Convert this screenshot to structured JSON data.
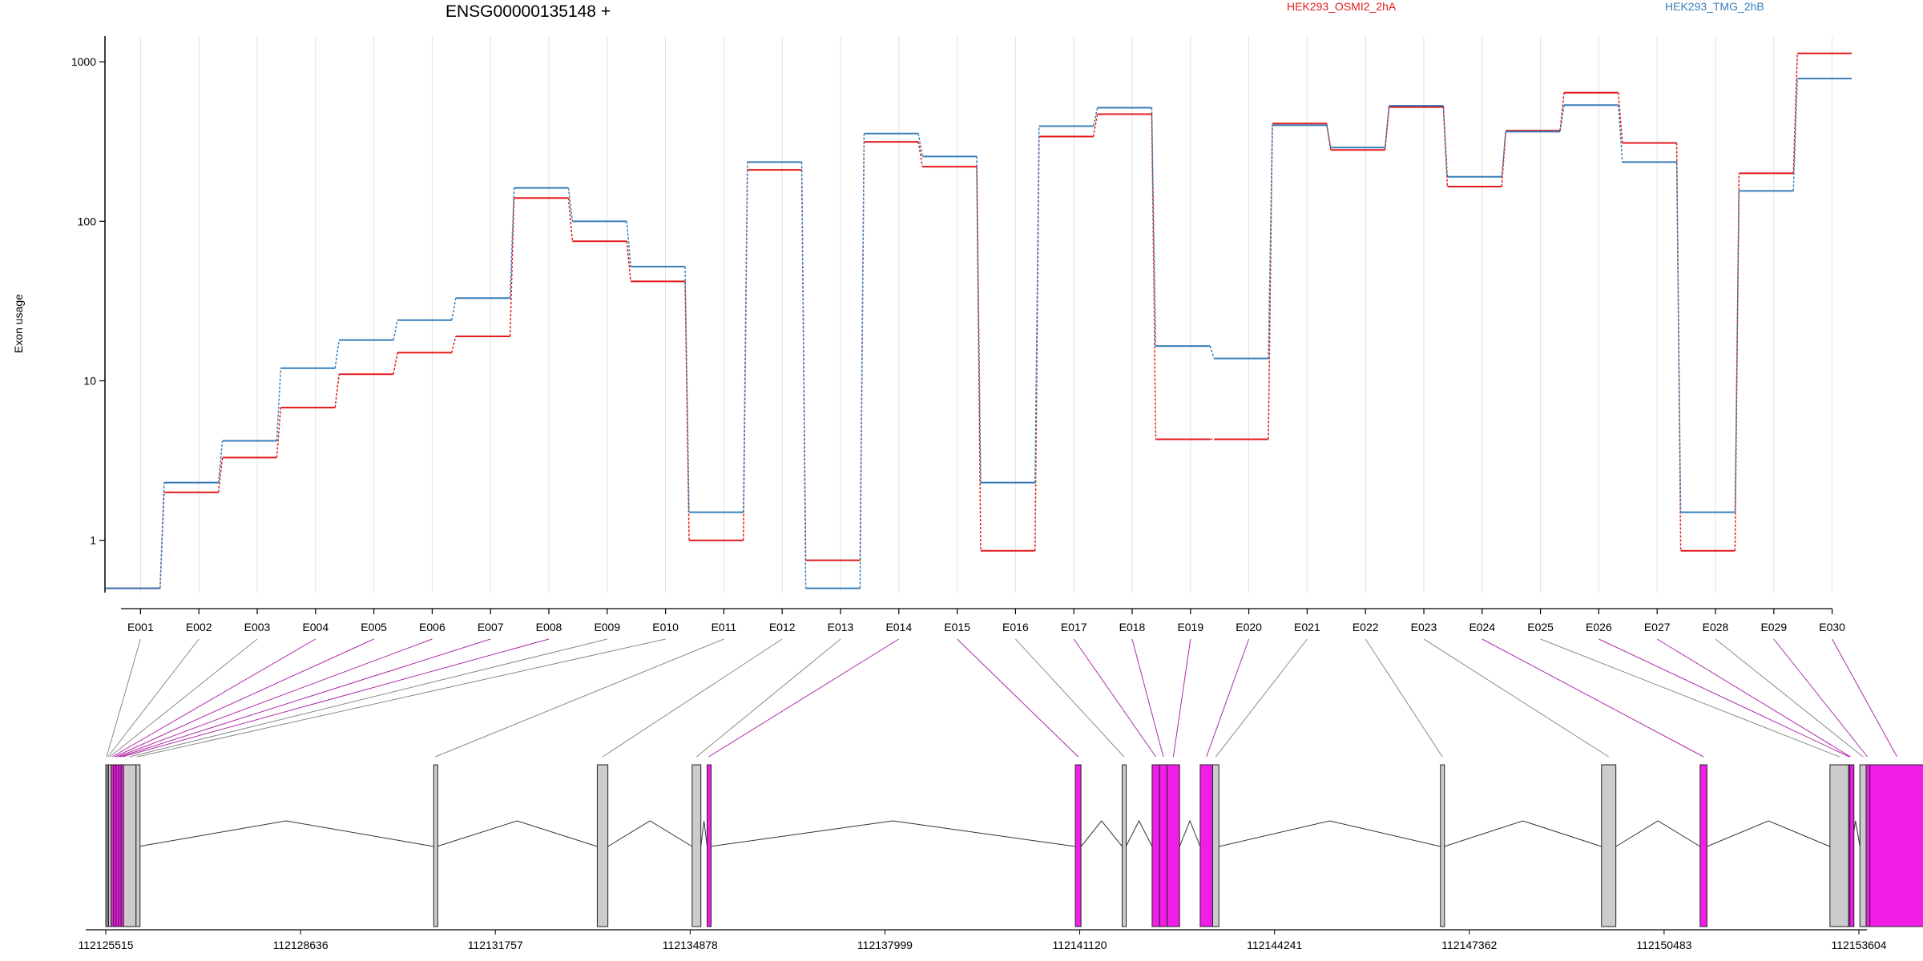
{
  "chart_data": {
    "type": "line",
    "title": "ENSG00000135148 +",
    "ylabel": "Exon usage",
    "yscale": "log",
    "ylim": [
      0.47,
      1450
    ],
    "yticks": [
      "1",
      "10",
      "100",
      "1000"
    ],
    "grid": true,
    "legend_position": "top",
    "categories": [
      "E001",
      "E002",
      "E003",
      "E004",
      "E005",
      "E006",
      "E007",
      "E008",
      "E009",
      "E010",
      "E011",
      "E012",
      "E013",
      "E014",
      "E015",
      "E016",
      "E017",
      "E018",
      "E019",
      "E020",
      "E021",
      "E022",
      "E023",
      "E024",
      "E025",
      "E026",
      "E027",
      "E028",
      "E029",
      "E030"
    ],
    "series": [
      {
        "name": "HEK293_OSMI2_2hA",
        "color": "#e41a1c",
        "values": [
          0.5,
          2.0,
          3.3,
          6.8,
          11,
          15,
          19,
          140,
          75,
          42,
          1.0,
          210,
          0.75,
          315,
          220,
          0.86,
          340,
          470,
          4.3,
          4.3,
          410,
          280,
          520,
          165,
          370,
          640,
          310,
          0.86,
          200,
          1130
        ]
      },
      {
        "name": "HEK293_TMG_2hB",
        "color": "#377eb8",
        "values": [
          0.5,
          2.3,
          4.2,
          12,
          18,
          24,
          33,
          162,
          100,
          52,
          1.5,
          235,
          0.5,
          355,
          255,
          2.3,
          395,
          515,
          16.5,
          13.8,
          400,
          290,
          530,
          190,
          365,
          535,
          235,
          1.5,
          155,
          785
        ]
      }
    ],
    "gene_model": {
      "coordinate_ticks": [
        "112125515",
        "112128636",
        "112131757",
        "112134878",
        "112137999",
        "112141120",
        "112144241",
        "112147362",
        "112150483",
        "112153604"
      ],
      "exon_colors": {
        "significant": "#f01ee6",
        "not_significant": "#cccccc"
      },
      "exons": [
        {
          "label": "E001",
          "significant": false
        },
        {
          "label": "E002",
          "significant": false
        },
        {
          "label": "E003",
          "significant": false
        },
        {
          "label": "E004",
          "significant": true
        },
        {
          "label": "E005",
          "significant": true
        },
        {
          "label": "E006",
          "significant": true
        },
        {
          "label": "E007",
          "significant": true
        },
        {
          "label": "E008",
          "significant": true
        },
        {
          "label": "E009",
          "significant": false
        },
        {
          "label": "E010",
          "significant": false
        },
        {
          "label": "E011",
          "significant": false
        },
        {
          "label": "E012",
          "significant": false
        },
        {
          "label": "E013",
          "significant": false
        },
        {
          "label": "E014",
          "significant": true
        },
        {
          "label": "E015",
          "significant": true
        },
        {
          "label": "E016",
          "significant": false
        },
        {
          "label": "E017",
          "significant": true
        },
        {
          "label": "E018",
          "significant": true
        },
        {
          "label": "E019",
          "significant": true
        },
        {
          "label": "E020",
          "significant": true
        },
        {
          "label": "E021",
          "significant": false
        },
        {
          "label": "E022",
          "significant": false
        },
        {
          "label": "E023",
          "significant": false
        },
        {
          "label": "E024",
          "significant": true
        },
        {
          "label": "E025",
          "significant": false
        },
        {
          "label": "E026",
          "significant": true
        },
        {
          "label": "E027",
          "significant": true
        },
        {
          "label": "E028",
          "significant": false
        },
        {
          "label": "E029",
          "significant": true
        },
        {
          "label": "E030",
          "significant": true
        }
      ]
    }
  }
}
